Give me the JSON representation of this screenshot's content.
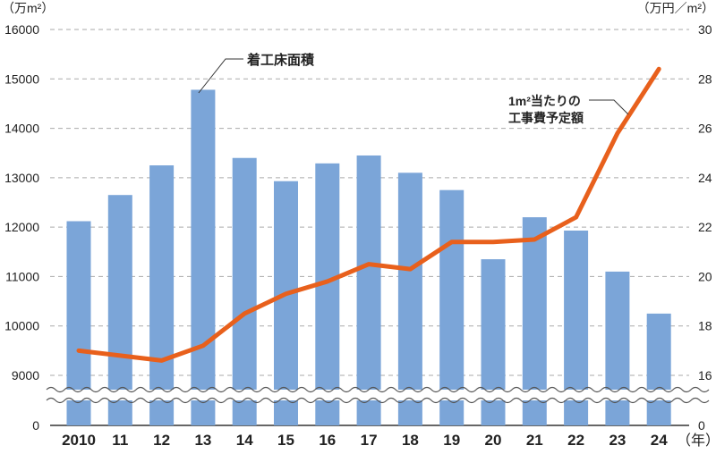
{
  "chart_data": {
    "type": "bar+line",
    "left_unit": "（万m²）",
    "right_unit": "（万円／m²）",
    "x_unit": "（年）",
    "categories": [
      "2010",
      "11",
      "12",
      "13",
      "14",
      "15",
      "16",
      "17",
      "18",
      "19",
      "20",
      "21",
      "22",
      "23",
      "24"
    ],
    "left_axis": {
      "ticks": [
        0,
        9000,
        10000,
        11000,
        12000,
        13000,
        14000,
        15000,
        16000
      ],
      "ylim": [
        9000,
        16000
      ],
      "axis_break": true
    },
    "right_axis": {
      "ticks": [
        0,
        16,
        18,
        20,
        22,
        24,
        26,
        28,
        30
      ],
      "ylim": [
        16,
        30
      ],
      "axis_break": true
    },
    "grid": "dashed horizontal",
    "series": [
      {
        "name": "着工床面積",
        "type": "bar",
        "axis": "left",
        "color": "#7ba5d8",
        "values": [
          12120,
          12650,
          13250,
          14780,
          13400,
          12930,
          13290,
          13450,
          13100,
          12750,
          11350,
          12200,
          11930,
          11100,
          10250
        ]
      },
      {
        "name": "1m²当たりの\n工事費予定額",
        "name_lines": [
          "1m²当たりの",
          "工事費予定額"
        ],
        "type": "line",
        "axis": "right",
        "color": "#e8601c",
        "values": [
          17.0,
          16.8,
          16.6,
          17.2,
          18.5,
          19.3,
          19.8,
          20.5,
          20.3,
          21.4,
          21.4,
          21.5,
          22.4,
          25.8,
          28.4
        ]
      }
    ]
  }
}
